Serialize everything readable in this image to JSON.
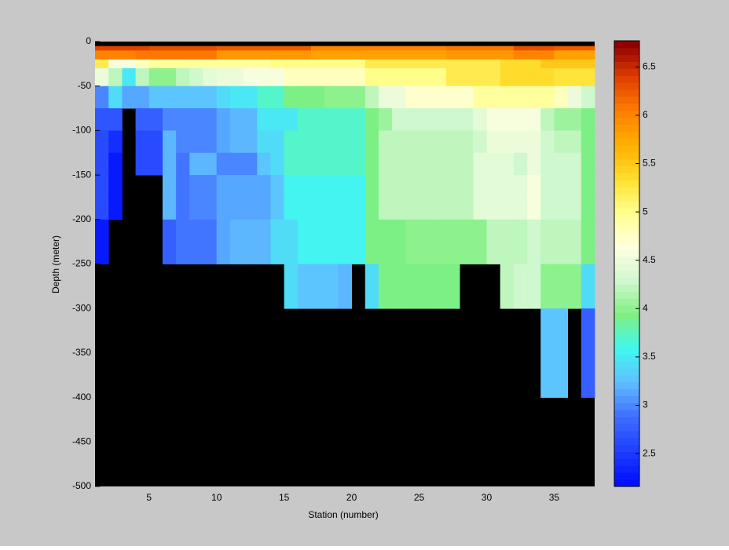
{
  "chart_data": {
    "type": "heatmap",
    "x_label": "Station (number)",
    "y_label": "Depth (meter)",
    "x": [
      1,
      2,
      3,
      4,
      5,
      6,
      7,
      8,
      9,
      10,
      11,
      12,
      13,
      14,
      15,
      16,
      17,
      18,
      19,
      20,
      21,
      22,
      23,
      24,
      25,
      26,
      27,
      28,
      29,
      30,
      31,
      32,
      33,
      34,
      35,
      36,
      37,
      38
    ],
    "y": [
      0,
      -5,
      -10,
      -20,
      -30,
      -50,
      -75,
      -100,
      -125,
      -150,
      -175,
      -200,
      -225,
      -250,
      -300,
      -400,
      -500
    ],
    "z": [
      [
        null,
        null,
        null,
        null,
        null,
        null,
        null,
        null,
        null,
        null,
        null,
        null,
        null,
        null,
        null,
        null,
        null,
        null,
        null,
        null,
        null,
        null,
        null,
        null,
        null,
        null,
        null,
        null,
        null,
        null,
        null,
        null,
        null,
        null,
        null,
        null,
        null
      ],
      [
        6.4,
        6.4,
        6.4,
        6.4,
        6.3,
        6.3,
        6.3,
        6.3,
        6.3,
        6.2,
        6.2,
        6.2,
        6.2,
        6.2,
        6.2,
        6.2,
        6.0,
        6.0,
        6.0,
        6.0,
        6.0,
        6.0,
        6.0,
        6.0,
        6.0,
        6.0,
        6.1,
        6.1,
        6.1,
        6.1,
        6.1,
        6.3,
        6.3,
        6.3,
        6.2,
        6.2,
        6.2
      ],
      [
        6.0,
        6.0,
        6.0,
        6.1,
        6.1,
        6.1,
        6.1,
        6.1,
        6.1,
        5.9,
        5.9,
        5.9,
        5.9,
        5.9,
        5.9,
        5.9,
        5.8,
        5.8,
        5.8,
        5.8,
        5.8,
        5.8,
        5.8,
        5.8,
        5.8,
        5.8,
        5.9,
        5.9,
        5.9,
        5.9,
        5.9,
        6.0,
        6.0,
        6.0,
        5.8,
        5.8,
        5.8
      ],
      [
        5.2,
        4.6,
        4.6,
        4.8,
        4.9,
        4.9,
        4.9,
        4.9,
        4.9,
        4.9,
        4.9,
        4.9,
        4.9,
        5.0,
        5.0,
        5.0,
        5.0,
        5.0,
        5.0,
        5.0,
        5.2,
        5.2,
        5.2,
        5.2,
        5.2,
        5.2,
        5.2,
        5.2,
        5.2,
        5.2,
        5.4,
        5.4,
        5.4,
        5.5,
        5.5,
        5.5,
        5.5
      ],
      [
        4.5,
        4.2,
        3.5,
        4.2,
        4.0,
        4.0,
        4.2,
        4.3,
        4.4,
        4.5,
        4.5,
        4.6,
        4.6,
        4.6,
        4.8,
        4.8,
        4.8,
        4.8,
        4.8,
        4.8,
        5.0,
        5.0,
        5.0,
        5.0,
        5.0,
        5.0,
        5.2,
        5.2,
        5.2,
        5.2,
        5.4,
        5.4,
        5.4,
        5.4,
        5.3,
        5.3,
        5.3
      ],
      [
        3.0,
        3.4,
        3.1,
        3.1,
        3.3,
        3.3,
        3.3,
        3.3,
        3.3,
        3.4,
        3.5,
        3.5,
        3.7,
        3.7,
        3.9,
        3.9,
        3.9,
        4.0,
        4.0,
        4.0,
        4.2,
        4.5,
        4.5,
        4.7,
        4.7,
        4.7,
        4.7,
        4.7,
        4.9,
        4.9,
        4.9,
        4.9,
        4.9,
        4.9,
        4.8,
        4.5,
        4.3
      ],
      [
        2.7,
        2.7,
        null,
        2.8,
        2.8,
        3.0,
        3.0,
        3.0,
        3.0,
        3.1,
        3.2,
        3.2,
        3.5,
        3.5,
        3.5,
        3.7,
        3.7,
        3.7,
        3.7,
        3.7,
        3.9,
        4.1,
        4.3,
        4.3,
        4.3,
        4.3,
        4.3,
        4.3,
        4.4,
        4.6,
        4.6,
        4.6,
        4.6,
        4.2,
        4.1,
        4.1,
        3.9
      ],
      [
        2.6,
        2.4,
        null,
        2.6,
        2.6,
        3.2,
        3.0,
        3.0,
        3.0,
        3.1,
        3.2,
        3.2,
        3.4,
        3.4,
        3.7,
        3.7,
        3.7,
        3.7,
        3.7,
        3.7,
        3.9,
        4.2,
        4.2,
        4.2,
        4.2,
        4.2,
        4.2,
        4.2,
        4.3,
        4.5,
        4.5,
        4.5,
        4.5,
        4.3,
        4.2,
        4.2,
        3.9
      ],
      [
        2.6,
        2.3,
        null,
        2.6,
        2.6,
        3.2,
        2.9,
        3.2,
        3.2,
        3.0,
        3.0,
        3.0,
        3.3,
        3.4,
        3.7,
        3.7,
        3.7,
        3.7,
        3.7,
        3.7,
        3.9,
        4.2,
        4.2,
        4.2,
        4.2,
        4.2,
        4.2,
        4.2,
        4.4,
        4.4,
        4.4,
        4.3,
        4.5,
        4.3,
        4.3,
        4.3,
        3.9
      ],
      [
        2.6,
        2.3,
        null,
        null,
        null,
        3.2,
        2.9,
        3.0,
        3.0,
        3.1,
        3.1,
        3.1,
        3.1,
        3.3,
        3.6,
        3.6,
        3.6,
        3.6,
        3.6,
        3.6,
        3.9,
        4.2,
        4.2,
        4.2,
        4.2,
        4.2,
        4.2,
        4.2,
        4.4,
        4.4,
        4.4,
        4.4,
        4.6,
        4.3,
        4.3,
        4.3,
        3.9
      ],
      [
        2.6,
        2.3,
        null,
        null,
        null,
        3.2,
        2.9,
        3.0,
        3.0,
        3.1,
        3.1,
        3.1,
        3.1,
        3.3,
        3.6,
        3.6,
        3.6,
        3.6,
        3.6,
        3.6,
        3.9,
        4.2,
        4.2,
        4.2,
        4.2,
        4.2,
        4.2,
        4.2,
        4.4,
        4.4,
        4.4,
        4.4,
        4.6,
        4.3,
        4.3,
        4.3,
        3.9
      ],
      [
        2.3,
        null,
        null,
        null,
        null,
        2.8,
        2.9,
        2.9,
        2.9,
        3.1,
        3.2,
        3.2,
        3.2,
        3.4,
        3.4,
        3.6,
        3.6,
        3.6,
        3.6,
        3.6,
        3.9,
        3.9,
        3.9,
        4.0,
        4.0,
        4.0,
        4.0,
        4.0,
        4.0,
        4.2,
        4.2,
        4.2,
        4.3,
        4.2,
        4.2,
        4.2,
        3.9
      ],
      [
        2.3,
        null,
        null,
        null,
        null,
        2.8,
        2.9,
        2.9,
        2.9,
        3.1,
        3.2,
        3.2,
        3.2,
        3.4,
        3.4,
        3.6,
        3.6,
        3.6,
        3.6,
        3.6,
        3.9,
        3.9,
        3.9,
        4.0,
        4.0,
        4.0,
        4.0,
        4.0,
        4.0,
        4.2,
        4.2,
        4.2,
        4.3,
        4.2,
        4.2,
        4.2,
        3.9
      ],
      [
        null,
        null,
        null,
        null,
        null,
        null,
        null,
        null,
        null,
        null,
        null,
        null,
        null,
        null,
        3.4,
        3.3,
        3.3,
        3.3,
        3.2,
        null,
        3.4,
        3.9,
        3.9,
        3.9,
        3.9,
        3.9,
        3.9,
        null,
        null,
        null,
        4.2,
        4.3,
        4.3,
        4.0,
        4.0,
        4.0,
        3.4
      ],
      [
        null,
        null,
        null,
        null,
        null,
        null,
        null,
        null,
        null,
        null,
        null,
        null,
        null,
        null,
        null,
        null,
        null,
        null,
        null,
        null,
        null,
        null,
        null,
        null,
        null,
        null,
        null,
        null,
        null,
        null,
        null,
        null,
        null,
        3.3,
        3.3,
        null,
        2.8
      ],
      [
        null,
        null,
        null,
        null,
        null,
        null,
        null,
        null,
        null,
        null,
        null,
        null,
        null,
        null,
        null,
        null,
        null,
        null,
        null,
        null,
        null,
        null,
        null,
        null,
        null,
        null,
        null,
        null,
        null,
        null,
        null,
        null,
        null,
        null,
        null,
        null,
        null
      ]
    ],
    "xlim": [
      1,
      38
    ],
    "ylim": [
      -500,
      0
    ],
    "xticks": [
      5,
      10,
      15,
      20,
      25,
      30,
      35
    ],
    "yticks": [
      0,
      -50,
      -100,
      -150,
      -200,
      -250,
      -300,
      -350,
      -400,
      -450,
      -500
    ],
    "clim": [
      2.16,
      6.77
    ],
    "cticks": [
      2.5,
      3,
      3.5,
      4,
      4.5,
      5,
      5.5,
      6,
      6.5
    ],
    "colormap": [
      "#0010ff",
      "#2040ff",
      "#4070ff",
      "#60c0ff",
      "#40f8f0",
      "#80f080",
      "#d0f8d0",
      "#ffffe0",
      "#ffff90",
      "#ffe030",
      "#ffb000",
      "#ff8000",
      "#e04000",
      "#900000"
    ],
    "nan_color": "#000000",
    "background": "#c8c8c8"
  }
}
